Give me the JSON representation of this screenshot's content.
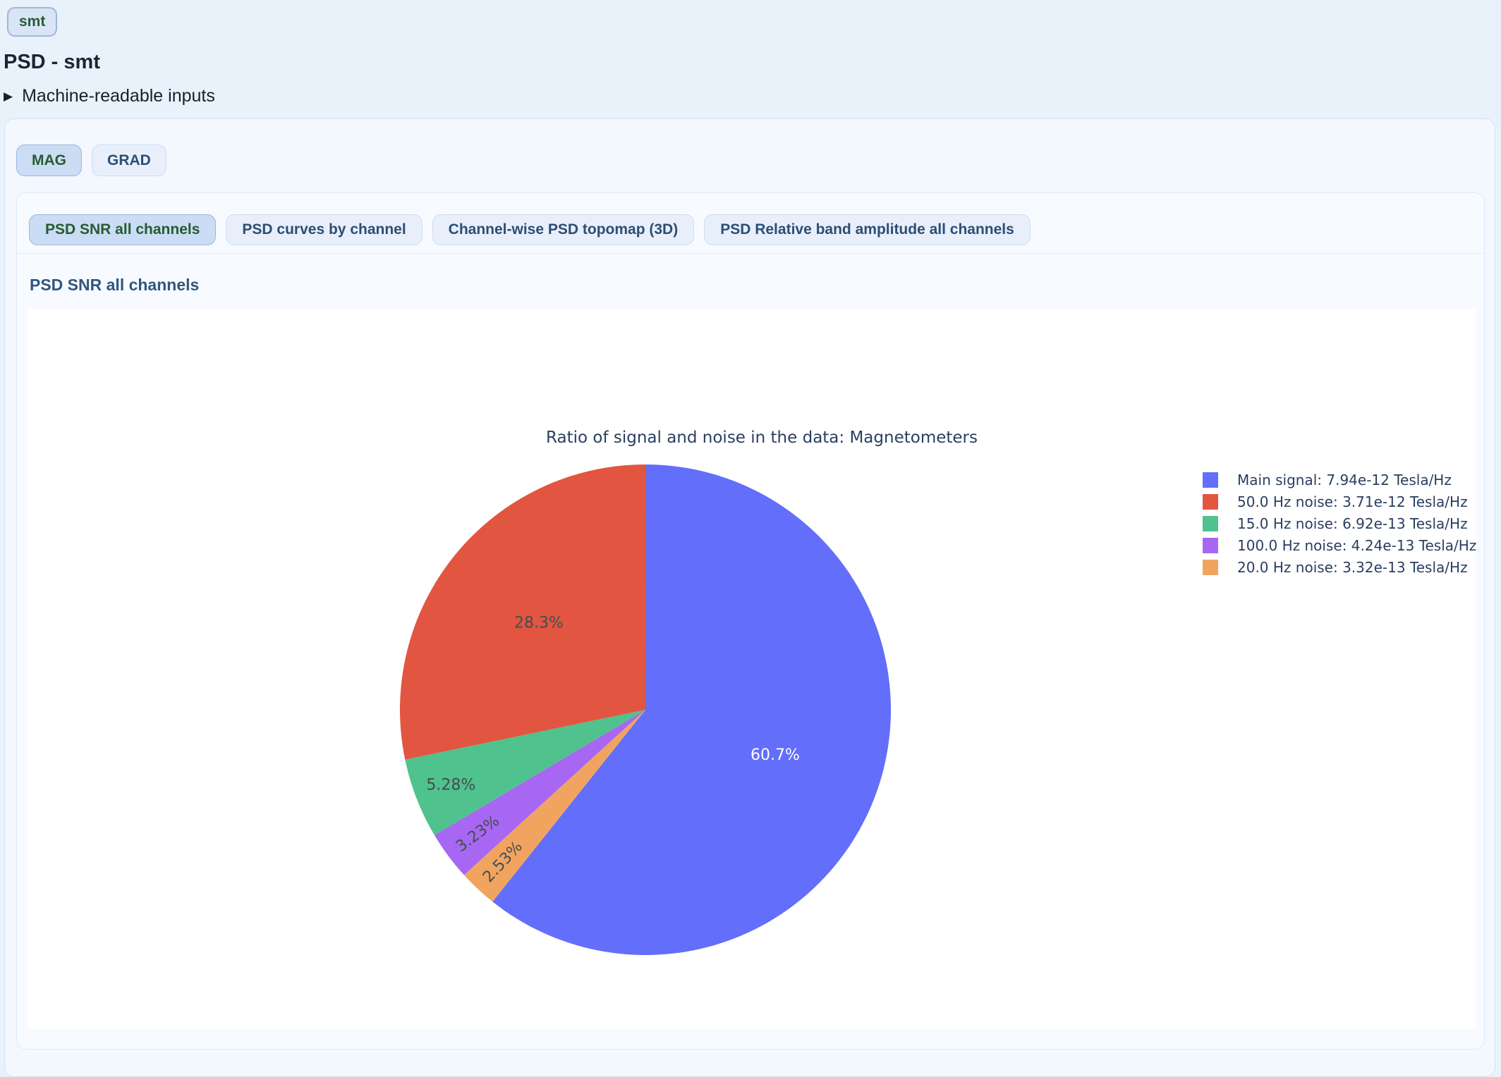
{
  "page": {
    "badge": "smt",
    "title": "PSD - smt",
    "details_summary": "Machine-readable inputs"
  },
  "tabs": {
    "channel_types": [
      {
        "label": "MAG",
        "selected": true
      },
      {
        "label": "GRAD",
        "selected": false
      }
    ],
    "views": [
      {
        "label": "PSD SNR all channels",
        "selected": true
      },
      {
        "label": "PSD curves by channel",
        "selected": false
      },
      {
        "label": "Channel-wise PSD topomap (3D)",
        "selected": false
      },
      {
        "label": "PSD Relative band amplitude all channels",
        "selected": false
      }
    ]
  },
  "section": {
    "heading": "PSD SNR all channels"
  },
  "chart_data": {
    "type": "pie",
    "title": "Ratio of signal and noise in the data: Magnetometers",
    "legend_position": "right",
    "layout_note": "largest slice drawn clockwise from 12 o'clock, remaining slices fill counterclockwise from 12 o'clock",
    "slices": [
      {
        "legend": "Main signal: 7.94e-12 Tesla/Hz",
        "value_tesla_per_hz": "7.94e-12",
        "percent": 60.7,
        "percent_label": "60.7%",
        "color": "#636efa",
        "label_color": "#ffffff"
      },
      {
        "legend": "50.0 Hz noise: 3.71e-12 Tesla/Hz",
        "value_tesla_per_hz": "3.71e-12",
        "percent": 28.3,
        "percent_label": "28.3%",
        "color": "#e25540",
        "label_color": "#434e50"
      },
      {
        "legend": "15.0 Hz noise: 6.92e-13 Tesla/Hz",
        "value_tesla_per_hz": "6.92e-13",
        "percent": 5.28,
        "percent_label": "5.28%",
        "color": "#4fc28d",
        "label_color": "#434e50"
      },
      {
        "legend": "100.0 Hz noise: 4.24e-13 Tesla/Hz",
        "value_tesla_per_hz": "4.24e-13",
        "percent": 3.23,
        "percent_label": "3.23%",
        "color": "#a767f2",
        "label_color": "#434e50"
      },
      {
        "legend": "20.0 Hz noise: 3.32e-13 Tesla/Hz",
        "value_tesla_per_hz": "3.32e-13",
        "percent": 2.53,
        "percent_label": "2.53%",
        "color": "#f1a460",
        "label_color": "#434e50"
      }
    ]
  }
}
